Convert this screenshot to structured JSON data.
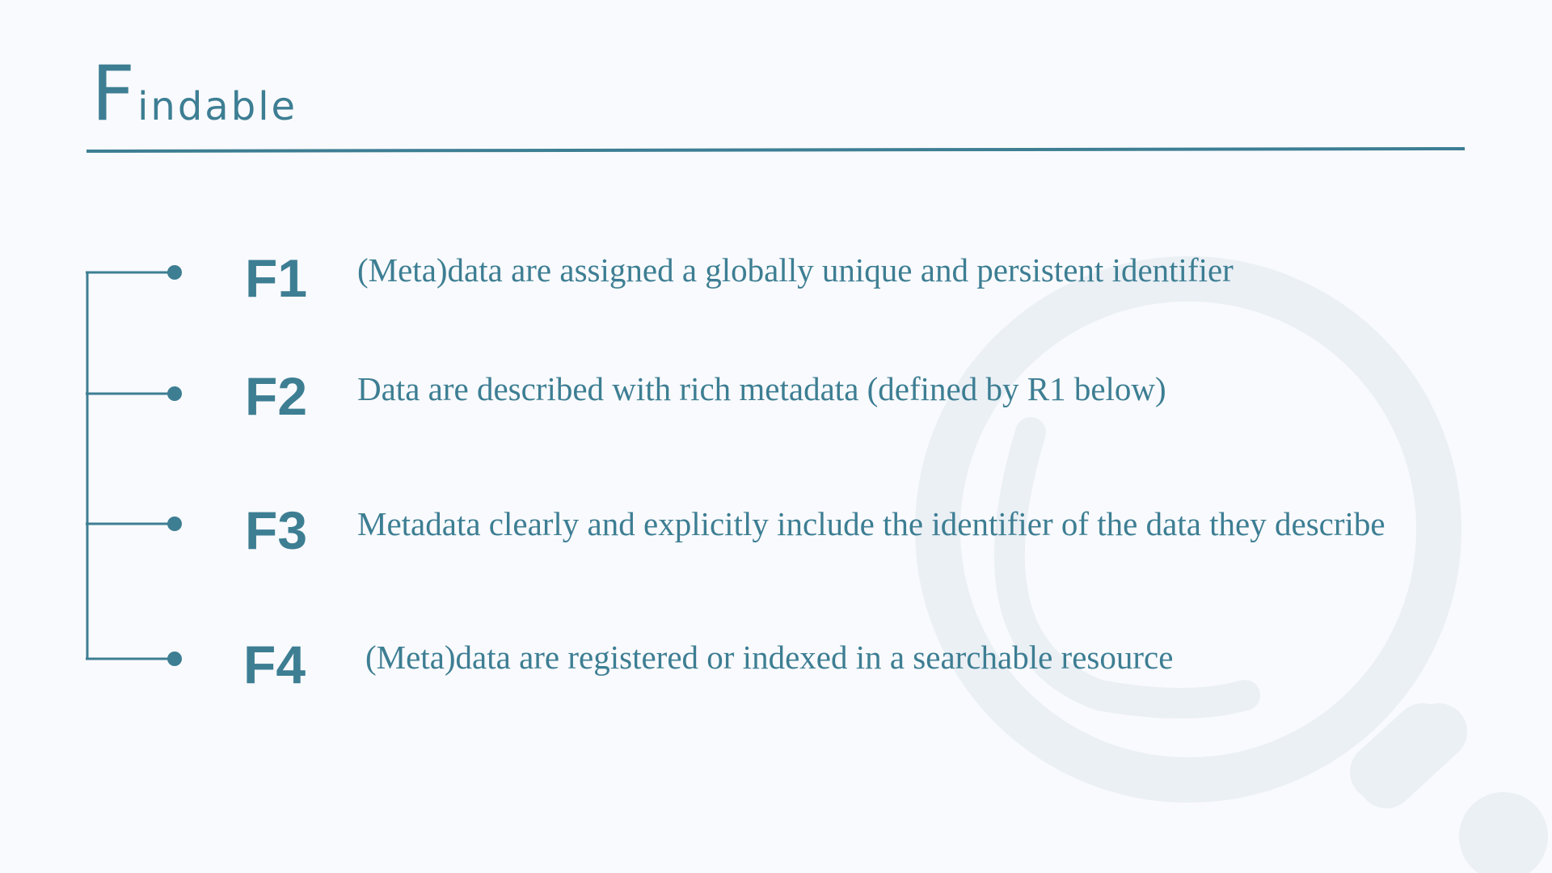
{
  "title": {
    "initial": "F",
    "rest": "indable"
  },
  "colors": {
    "accent": "#3d7e93",
    "background": "#f9fafd",
    "watermark": "#ebf0f5"
  },
  "principles": [
    {
      "code": "F1",
      "text": "(Meta)data are assigned a globally unique and persistent identifier"
    },
    {
      "code": "F2",
      "text": "Data are described with rich metadata (defined by R1 below)"
    },
    {
      "code": "F3",
      "text": "Metadata clearly and explicitly include the identifier of the data they describe"
    },
    {
      "code": "F4",
      "text": "(Meta)data are registered or indexed in a searchable resource"
    }
  ],
  "icons": {
    "background": "magnifier-icon"
  }
}
